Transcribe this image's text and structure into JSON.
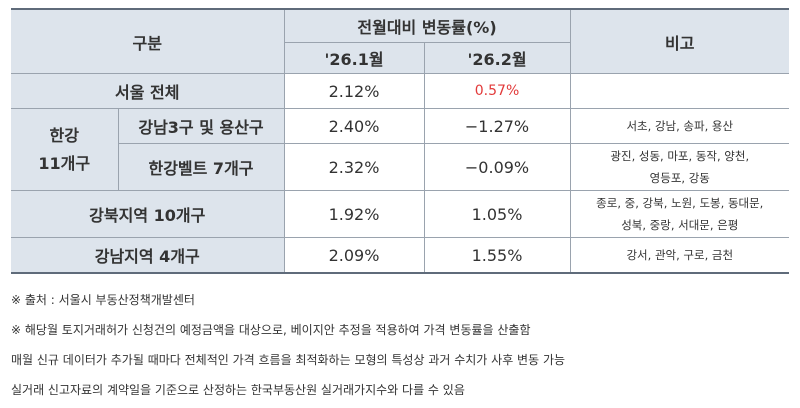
{
  "table": {
    "header": {
      "category": "구분",
      "change_group": "전월대비 변동률(%)",
      "col_jan": "'26.1월",
      "col_feb": "'26.2월",
      "remarks": "비고"
    },
    "rows": {
      "seoul": {
        "label": "서울 전체",
        "jan": "2.12%",
        "feb": "0.57%",
        "note": ""
      },
      "han_group": "한강\n11개구",
      "gangnam3": {
        "label": "강남3구 및 용산구",
        "jan": "2.40%",
        "feb": "−1.27%",
        "note": "서초, 강남, 송파, 용산"
      },
      "hanbelt": {
        "label": "한강벨트 7개구",
        "jan": "2.32%",
        "feb": "−0.09%",
        "note": "광진, 성동, 마포, 동작, 양천,\n영등포, 강동"
      },
      "gangbuk": {
        "label": "강북지역 10개구",
        "jan": "1.92%",
        "feb": "1.05%",
        "note": "종로, 중, 강북, 노원, 도봉, 동대문,\n성북, 중랑, 서대문, 은평"
      },
      "gangnam4": {
        "label": "강남지역 4개구",
        "jan": "2.09%",
        "feb": "1.55%",
        "note": "강서, 관악, 구로, 금천"
      }
    }
  },
  "footnotes": [
    "※ 출처 : 서울시 부동산정책개발센터",
    "※ 해당월 토지거래허가 신청건의 예정금액을 대상으로, 베이지안 추정을 적용하여 가격 변동률을 산출함",
    "매월 신규 데이터가 추가될 때마다 전체적인 가격 흐름을 최적화하는 모형의 특성상 과거 수치가 사후 변동 가능",
    "실거래 신고자료의 계약일을 기준으로 산정하는 한국부동산원 실거래가지수와 다를 수 있음"
  ],
  "colors": {
    "header_bg": "#dde4ec",
    "negative_highlight": "#e23a3a",
    "border": "#9aa3ae"
  }
}
